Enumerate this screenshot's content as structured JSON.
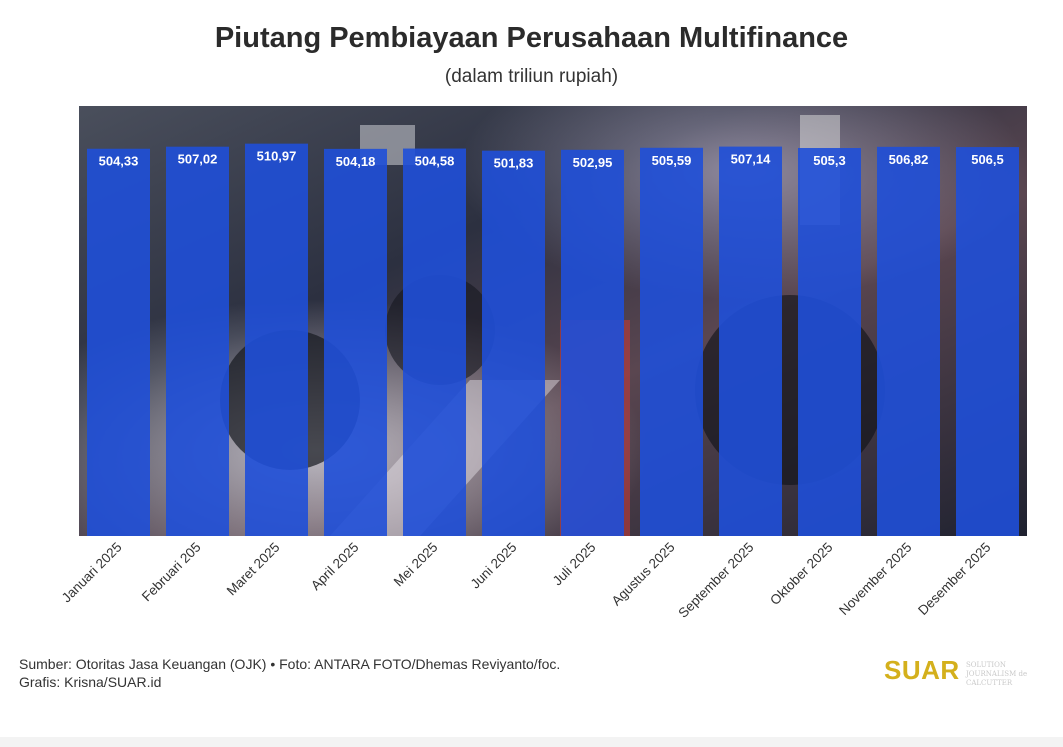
{
  "header": {
    "title": "Piutang Pembiayaan Perusahaan Multifinance",
    "subtitle": "(dalam triliun rupiah)"
  },
  "footer": {
    "source": "Sumber: Otoritas Jasa Keuangan (OJK) • Foto: ANTARA FOTO/Dhemas Reviyanto/foc.",
    "credit": "Grafis: Krisna/SUAR.id"
  },
  "brand": {
    "logo_text": "SUAR",
    "tagline": "SOLUTION JOURNALISM de CALCUTTER",
    "logo_color": "#d4b01c"
  },
  "colors": {
    "bar": "#1f4fd8",
    "label_text": "#ffffff"
  },
  "chart_data": {
    "type": "bar",
    "title": "Piutang Pembiayaan Perusahaan Multifinance",
    "subtitle": "(dalam triliun rupiah)",
    "categories": [
      "Januari 2025",
      "Februari 205",
      "Maret 2025",
      "April 2025",
      "Mei 2025",
      "Juni 2025",
      "Juli 2025",
      "Agustus 2025",
      "September 2025",
      "Oktober 2025",
      "November 2025",
      "Desember 2025"
    ],
    "values": [
      504.33,
      507.02,
      510.97,
      504.18,
      504.58,
      501.83,
      502.95,
      505.59,
      507.14,
      505.3,
      506.82,
      506.5
    ],
    "value_labels": [
      "504,33",
      "507,02",
      "510,97",
      "504,18",
      "504,58",
      "501,83",
      "502,95",
      "505,59",
      "507,14",
      "505,3",
      "506,82",
      "506,5"
    ],
    "ylim": [
      0,
      560
    ],
    "grid": false,
    "legend": "none",
    "background": "photo of motorcycles at an exhibition"
  }
}
